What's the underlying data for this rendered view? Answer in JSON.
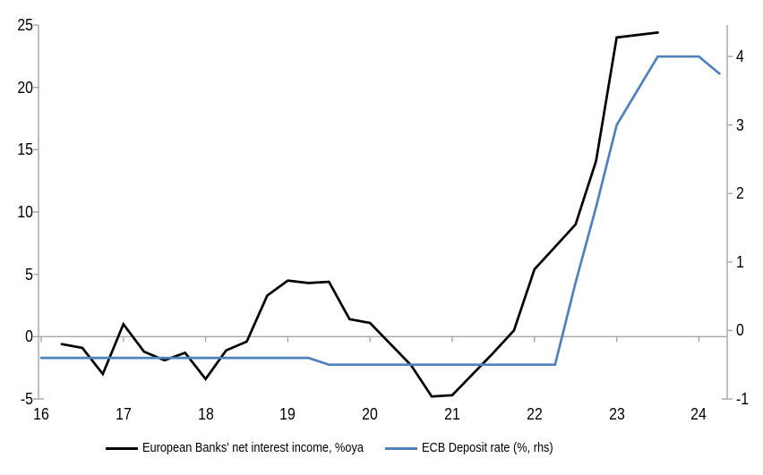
{
  "chart_data": {
    "type": "line",
    "title": "",
    "x_tick_labels": [
      "16",
      "17",
      "18",
      "19",
      "20",
      "21",
      "22",
      "23",
      "24"
    ],
    "x_unit": "quarterly (4 points per year tick)",
    "left_axis": {
      "ticks": [
        "25",
        "20",
        "15",
        "10",
        "5",
        "0",
        "-5"
      ],
      "range_bottom": -5,
      "range_top": 25
    },
    "right_axis": {
      "ticks": [
        "4",
        "3",
        "2",
        "1",
        "0",
        "-1"
      ],
      "range_bottom": -1,
      "range_top": 4.46
    },
    "grid": "zero-line-only",
    "legend_position": "bottom",
    "series": [
      {
        "name": "European Banks' net interest income, %oya",
        "axis": "left",
        "color": "#000000",
        "start_quarter_index": 1,
        "quarter_of_first_point": "2016 Q2",
        "values": [
          -0.6,
          -0.9,
          -3.0,
          1.0,
          -1.2,
          -1.9,
          -1.3,
          -3.4,
          -1.1,
          -0.4,
          3.3,
          4.5,
          4.3,
          4.4,
          1.4,
          1.1,
          -0.6,
          -2.3,
          -4.8,
          -4.7,
          -3.0,
          -1.3,
          0.5,
          5.4,
          7.2,
          9.0,
          14.1,
          24.0,
          24.2,
          24.4
        ]
      },
      {
        "name": "ECB Deposit rate (%, rhs)",
        "axis": "right",
        "color": "#4f81bd",
        "start_quarter_index": 0,
        "quarter_of_first_point": "2016 Q1",
        "values": [
          -0.4,
          -0.4,
          -0.4,
          -0.4,
          -0.4,
          -0.4,
          -0.4,
          -0.4,
          -0.4,
          -0.4,
          -0.4,
          -0.4,
          -0.4,
          -0.4,
          -0.5,
          -0.5,
          -0.5,
          -0.5,
          -0.5,
          -0.5,
          -0.5,
          -0.5,
          -0.5,
          -0.5,
          -0.5,
          -0.5,
          0.7,
          1.8,
          3.0,
          3.5,
          4.0,
          4.0,
          4.0,
          3.75
        ]
      }
    ],
    "colors": {
      "axis_line": "#a6a6a6",
      "zero_axis_line": "#a6a6a6",
      "text": "#000000"
    }
  }
}
